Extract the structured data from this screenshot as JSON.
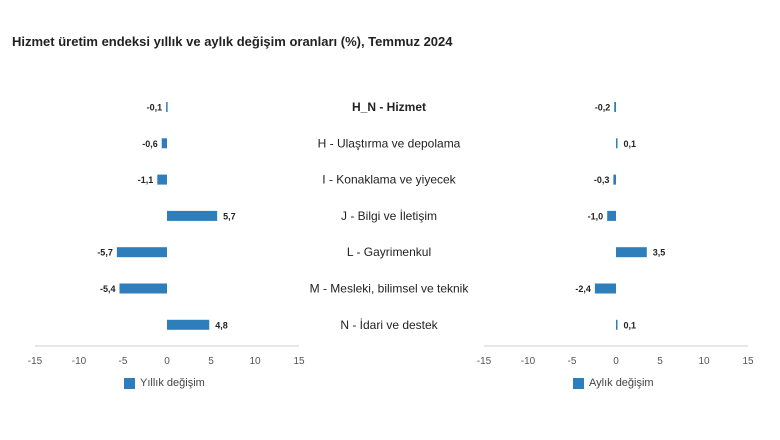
{
  "title": "Hizmet üretim endeksi yıllık ve aylık değişim oranları (%), Temmuz 2024",
  "colors": {
    "bar": "#2f7ebc",
    "axis": "#cccccc"
  },
  "chart_data": [
    {
      "type": "bar",
      "orientation": "horizontal",
      "categories": [
        "H_N - Hizmet",
        "H - Ulaştırma ve depolama",
        "I - Konaklama ve yiyecek",
        "J - Bilgi ve İletişim",
        "L - Gayrimenkul",
        "M - Mesleki, bilimsel ve teknik",
        "N - İdari ve destek"
      ],
      "values": [
        -0.1,
        -0.6,
        -1.1,
        5.7,
        -5.7,
        -5.4,
        4.8
      ],
      "value_labels": [
        "-0,1",
        "-0,6",
        "-1,1",
        "5,7",
        "-5,7",
        "-5,4",
        "4,8"
      ],
      "series": [
        {
          "name": "Yıllık değişim",
          "values": [
            -0.1,
            -0.6,
            -1.1,
            5.7,
            -5.7,
            -5.4,
            4.8
          ]
        }
      ],
      "xlim": [
        -15,
        15
      ],
      "xticks": [
        -15,
        -10,
        -5,
        0,
        5,
        10,
        15
      ],
      "grid": false,
      "legend": "bottom-left"
    },
    {
      "type": "bar",
      "orientation": "horizontal",
      "categories": [
        "H_N - Hizmet",
        "H - Ulaştırma ve depolama",
        "I - Konaklama ve yiyecek",
        "J - Bilgi ve İletişim",
        "L - Gayrimenkul",
        "M - Mesleki, bilimsel ve teknik",
        "N - İdari ve destek"
      ],
      "values": [
        -0.2,
        0.1,
        -0.3,
        -1.0,
        3.5,
        -2.4,
        0.1
      ],
      "value_labels": [
        "-0,2",
        "0,1",
        "-0,3",
        "-1,0",
        "3,5",
        "-2,4",
        "0,1"
      ],
      "series": [
        {
          "name": "Aylık değişim",
          "values": [
            -0.2,
            0.1,
            -0.3,
            -1.0,
            3.5,
            -2.4,
            0.1
          ]
        }
      ],
      "xlim": [
        -15,
        15
      ],
      "xticks": [
        -15,
        -10,
        -5,
        0,
        5,
        10,
        15
      ],
      "grid": false,
      "legend": "bottom-right"
    }
  ]
}
